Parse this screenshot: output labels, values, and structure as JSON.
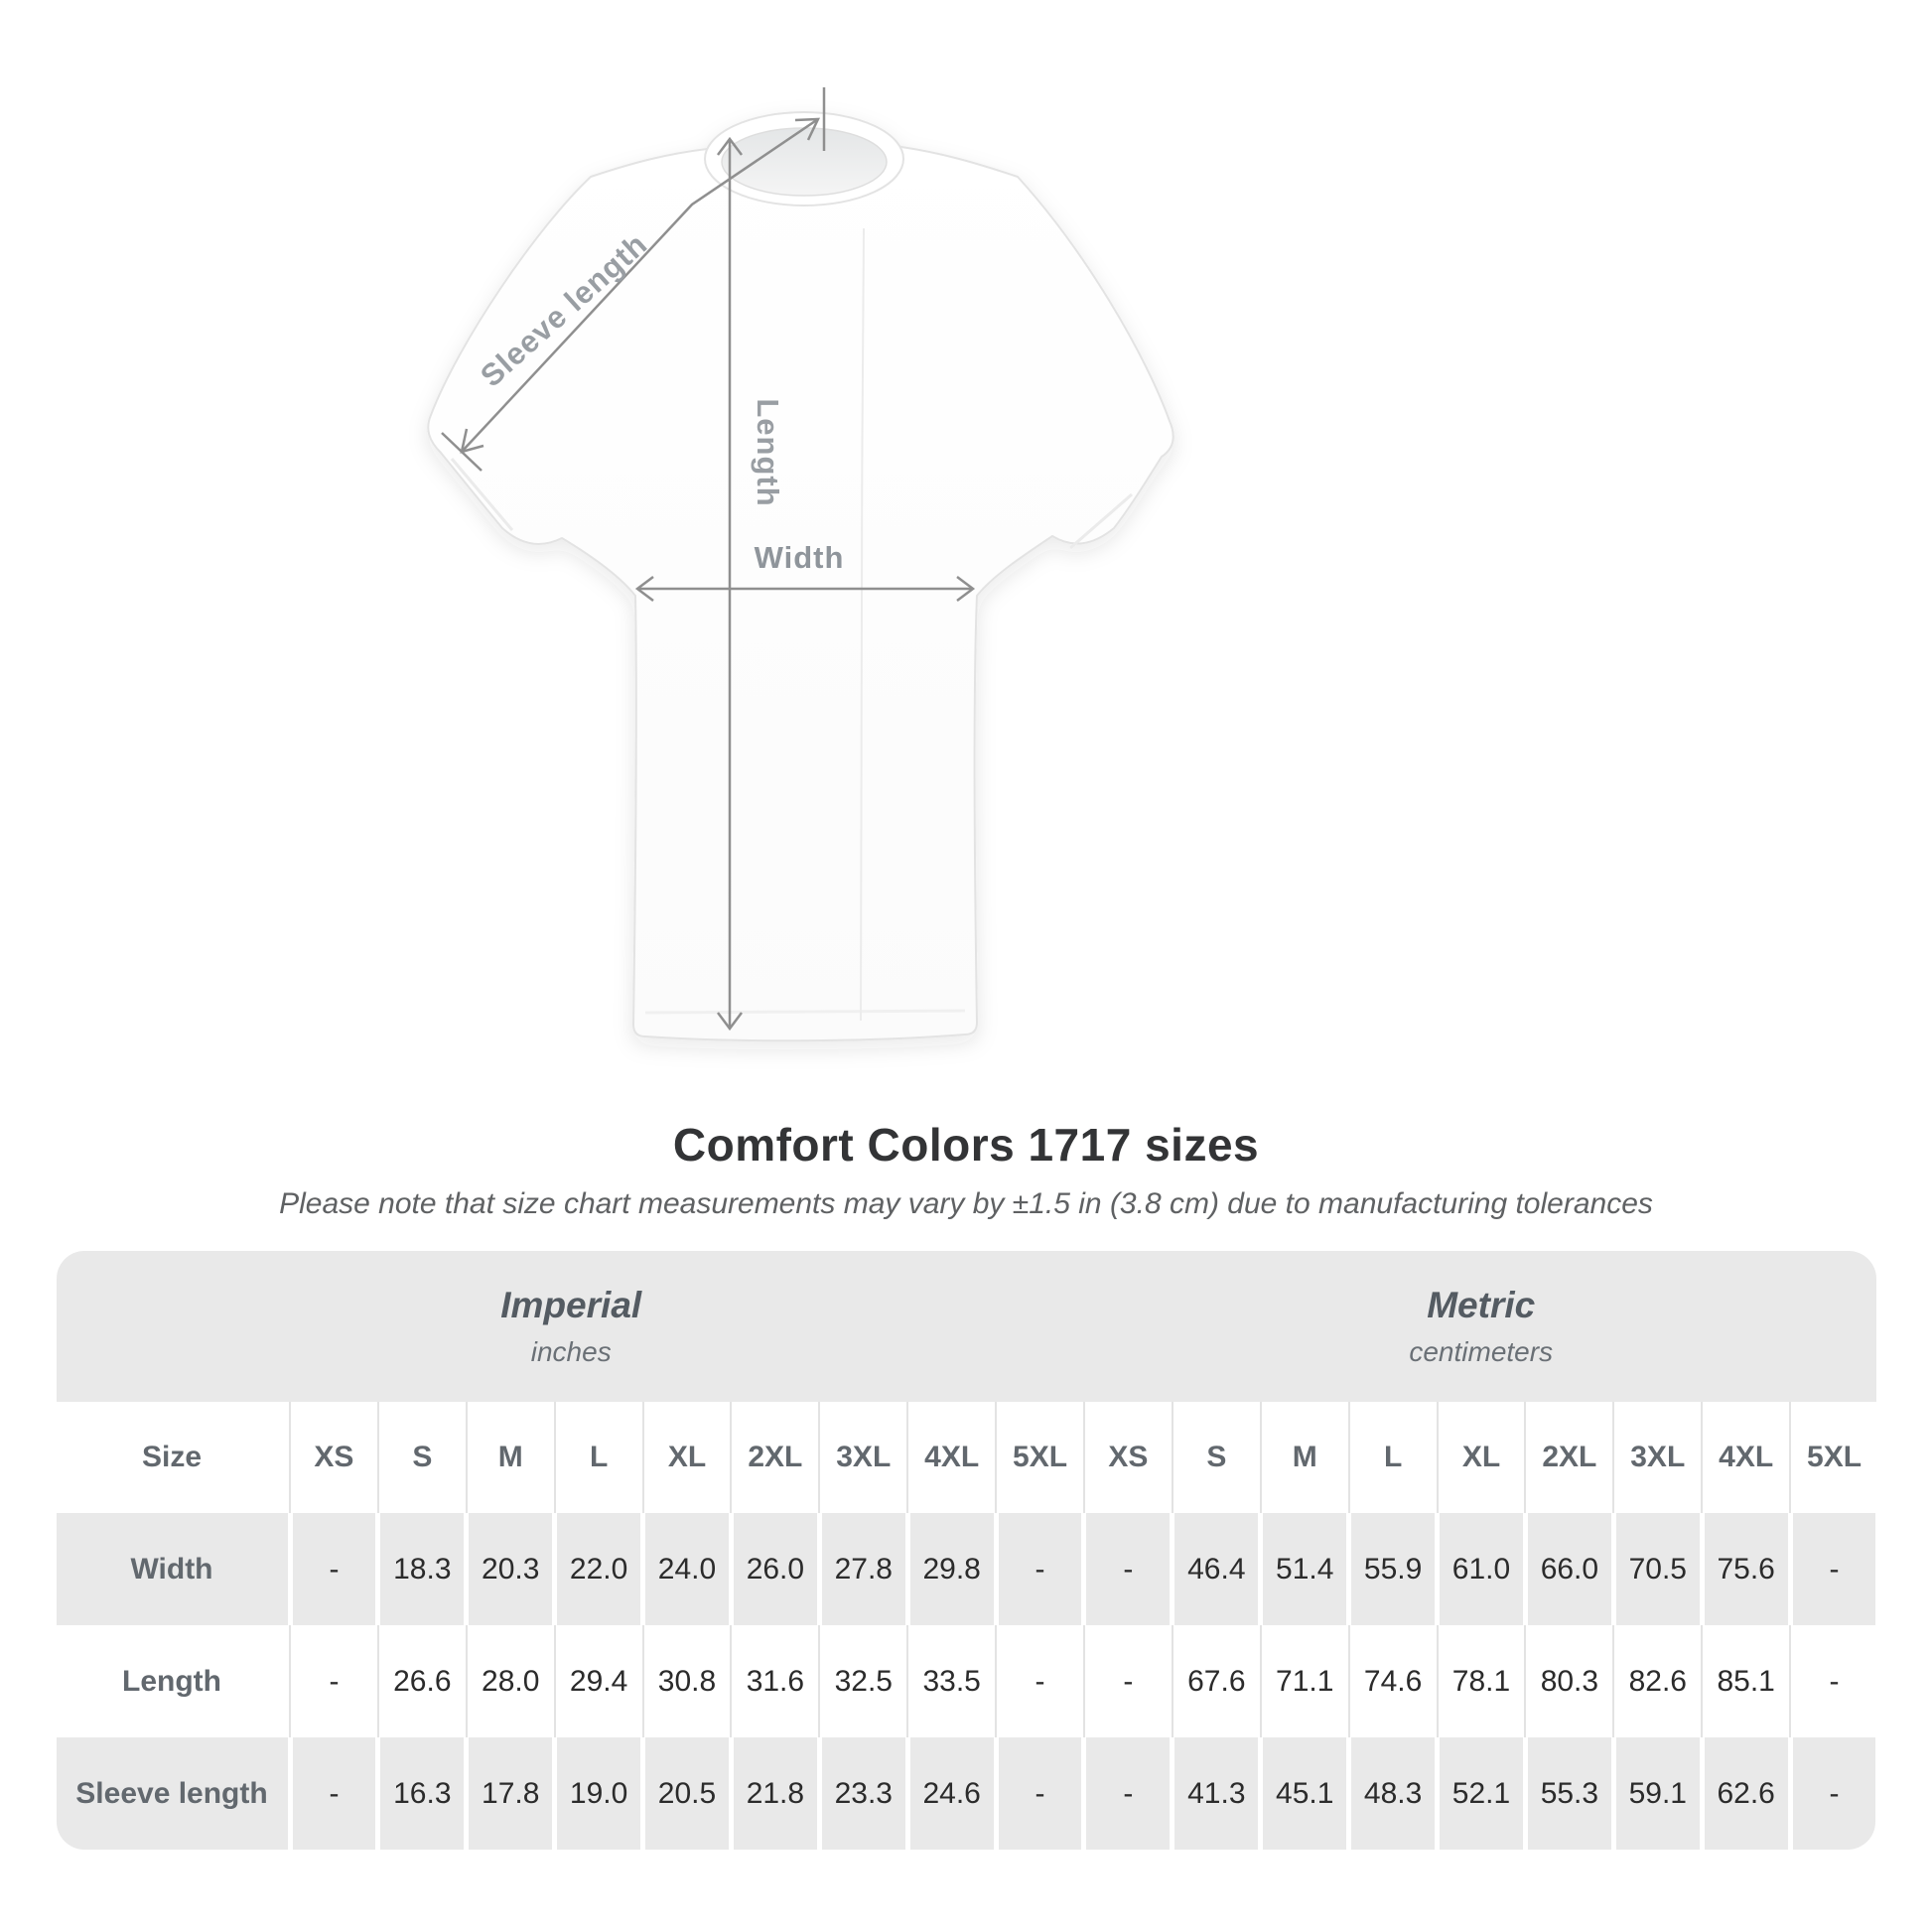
{
  "diagram": {
    "labels": {
      "sleeve_length": "Sleeve length",
      "length": "Length",
      "width": "Width"
    },
    "colors": {
      "arrow": "#8f8f8f",
      "label": "#999ea3",
      "shirt_outline": "#e3e3e3"
    }
  },
  "title": "Comfort Colors 1717 sizes",
  "subtitle": "Please note that size chart measurements may vary by ±1.5 in (3.8 cm) due to manufacturing tolerances",
  "table": {
    "size_label": "Size",
    "sections": [
      {
        "name": "Imperial",
        "unit": "inches"
      },
      {
        "name": "Metric",
        "unit": "centimeters"
      }
    ],
    "sizes": [
      "XS",
      "S",
      "M",
      "L",
      "XL",
      "2XL",
      "3XL",
      "4XL",
      "5XL"
    ],
    "rows": [
      {
        "label": "Width",
        "imperial": [
          "-",
          "18.3",
          "20.3",
          "22.0",
          "24.0",
          "26.0",
          "27.8",
          "29.8",
          "-"
        ],
        "metric": [
          "-",
          "46.4",
          "51.4",
          "55.9",
          "61.0",
          "66.0",
          "70.5",
          "75.6",
          "-"
        ]
      },
      {
        "label": "Length",
        "imperial": [
          "-",
          "26.6",
          "28.0",
          "29.4",
          "30.8",
          "31.6",
          "32.5",
          "33.5",
          "-"
        ],
        "metric": [
          "-",
          "67.6",
          "71.1",
          "74.6",
          "78.1",
          "80.3",
          "82.6",
          "85.1",
          "-"
        ]
      },
      {
        "label": "Sleeve length",
        "imperial": [
          "-",
          "16.3",
          "17.8",
          "19.0",
          "20.5",
          "21.8",
          "23.3",
          "24.6",
          "-"
        ],
        "metric": [
          "-",
          "41.3",
          "45.1",
          "48.3",
          "52.1",
          "55.3",
          "59.1",
          "62.6",
          "-"
        ]
      }
    ]
  },
  "chart_data": {
    "type": "table",
    "title": "Comfort Colors 1717 sizes",
    "columns": [
      "Size",
      "XS",
      "S",
      "M",
      "L",
      "XL",
      "2XL",
      "3XL",
      "4XL",
      "5XL"
    ],
    "units": [
      "inches",
      "centimeters"
    ],
    "rows_imperial": [
      [
        "Width",
        null,
        18.3,
        20.3,
        22.0,
        24.0,
        26.0,
        27.8,
        29.8,
        null
      ],
      [
        "Length",
        null,
        26.6,
        28.0,
        29.4,
        30.8,
        31.6,
        32.5,
        33.5,
        null
      ],
      [
        "Sleeve length",
        null,
        16.3,
        17.8,
        19.0,
        20.5,
        21.8,
        23.3,
        24.6,
        null
      ]
    ],
    "rows_metric": [
      [
        "Width",
        null,
        46.4,
        51.4,
        55.9,
        61.0,
        66.0,
        70.5,
        75.6,
        null
      ],
      [
        "Length",
        null,
        67.6,
        71.1,
        74.6,
        78.1,
        80.3,
        82.6,
        85.1,
        null
      ],
      [
        "Sleeve length",
        null,
        41.3,
        45.1,
        48.3,
        52.1,
        55.3,
        59.1,
        62.6,
        null
      ]
    ]
  }
}
